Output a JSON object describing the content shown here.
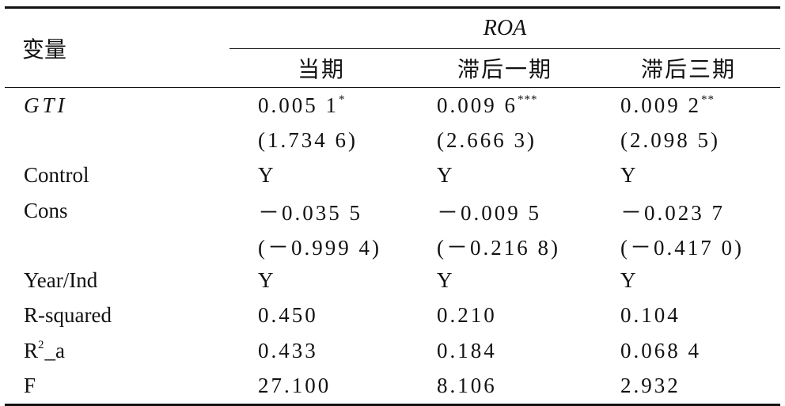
{
  "header": {
    "var_label": "变量",
    "group": "ROA",
    "columns": [
      "当期",
      "滞后一期",
      "滞后三期"
    ]
  },
  "rows": [
    {
      "label": "GTI",
      "cells": [
        {
          "text": "0.005 1",
          "sup": "*"
        },
        {
          "text": "0.009 6",
          "sup": "***"
        },
        {
          "text": "0.009 2",
          "sup": "**"
        }
      ]
    },
    {
      "label": null,
      "cells": [
        {
          "text": "(1.734 6)"
        },
        {
          "text": "(2.666 3)"
        },
        {
          "text": "(2.098 5)"
        }
      ]
    },
    {
      "label": "Control",
      "cells": [
        {
          "text": "Y"
        },
        {
          "text": "Y"
        },
        {
          "text": "Y"
        }
      ]
    },
    {
      "label": "Cons",
      "cells": [
        {
          "text": "－0.035 5"
        },
        {
          "text": "－0.009 5"
        },
        {
          "text": "－0.023 7"
        }
      ]
    },
    {
      "label": null,
      "cells": [
        {
          "text": "(－0.999 4)"
        },
        {
          "text": "(－0.216 8)"
        },
        {
          "text": "(－0.417 0)"
        }
      ]
    },
    {
      "label": "Year/Ind",
      "cells": [
        {
          "text": "Y"
        },
        {
          "text": "Y"
        },
        {
          "text": "Y"
        }
      ]
    },
    {
      "label": "R-squared",
      "cells": [
        {
          "text": "0.450"
        },
        {
          "text": "0.210"
        },
        {
          "text": "0.104"
        }
      ]
    },
    {
      "label": "R",
      "label_sup": "2",
      "label_rest": "_a",
      "cells": [
        {
          "text": "0.433"
        },
        {
          "text": "0.184"
        },
        {
          "text": "0.068 4"
        }
      ]
    },
    {
      "label": "F",
      "cells": [
        {
          "text": "27.100"
        },
        {
          "text": "8.106"
        },
        {
          "text": "2.932"
        }
      ]
    }
  ]
}
